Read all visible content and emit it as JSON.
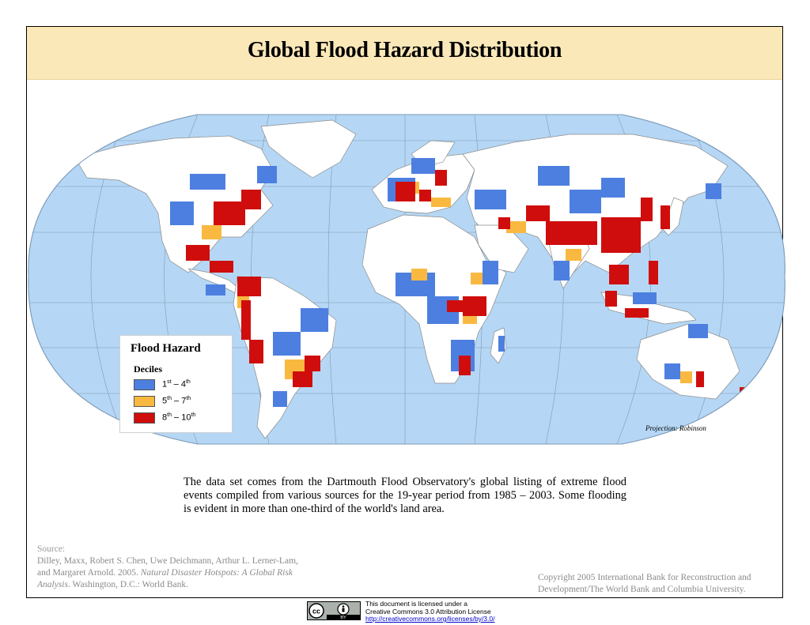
{
  "title": "Global Flood Hazard Distribution",
  "legend": {
    "title": "Flood Hazard",
    "subtitle": "Deciles",
    "items": [
      {
        "from": "1",
        "from_sup": "st",
        "to": "4",
        "to_sup": "th",
        "color": "#4d7fe0"
      },
      {
        "from": "5",
        "from_sup": "th",
        "to": "7",
        "to_sup": "th",
        "color": "#f9b940"
      },
      {
        "from": "8",
        "from_sup": "th",
        "to": "10",
        "to_sup": "th",
        "color": "#d00d0d"
      }
    ]
  },
  "projection_note": "Projection: Robinson",
  "description": "The data set comes from the Dartmouth Flood Observatory's global listing of extreme flood events compiled from various sources for the 19-year period from 1985 – 2003.  Some flooding is evident in more than one-third of the world's land area.",
  "source": {
    "label": "Source:",
    "text_plain": "Dilley, Maxx, Robert S. Chen, Uwe Deichmann, Arthur L. Lerner-Lam, and Margaret Arnold. 2005. ",
    "text_italic": "Natural Disaster Hotspots: A Global Risk Analysis",
    "text_end": ". Washington, D.C.: World Bank."
  },
  "copyright": "Copyright 2005 International Bank for Reconstruction and Development/The World Bank and Columbia University.",
  "license": {
    "line1": "This document is licensed under a",
    "line2": "Creative Commons 3.0 Attribution License",
    "link": "http://creativecommons.org/licenses/by/3.0/",
    "badge_by": "BY"
  },
  "colors": {
    "ocean": "#b5d7f5",
    "land": "#ffffff",
    "low": "#4d7fe0",
    "medium": "#f9b940",
    "high": "#d00d0d",
    "title_band": "#fbe8b8"
  }
}
